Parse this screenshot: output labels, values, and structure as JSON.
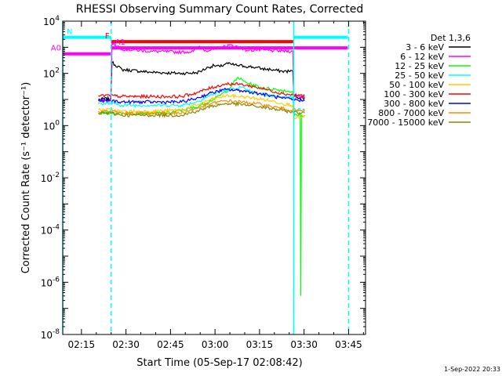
{
  "chart_data": {
    "type": "line",
    "title": "RHESSI Observing Summary Count Rates, Corrected",
    "xlabel": "Start Time (05-Sep-17 02:08:42)",
    "ylabel": "Corrected Count Rate (s⁻¹ detector⁻¹)",
    "x_unit": "minutes after 02:08:42",
    "xlim": [
      0,
      102
    ],
    "ylim": [
      1e-08,
      10000.0
    ],
    "y_scale": "log",
    "x_ticks": [
      {
        "label": "02:15",
        "x": 6.3
      },
      {
        "label": "02:30",
        "x": 21.3
      },
      {
        "label": "02:45",
        "x": 36.3
      },
      {
        "label": "03:00",
        "x": 51.3
      },
      {
        "label": "03:15",
        "x": 66.3
      },
      {
        "label": "03:30",
        "x": 81.3
      },
      {
        "label": "03:45",
        "x": 96.3
      }
    ],
    "y_ticks": [
      {
        "mant": "10",
        "exp": "4",
        "v": 4
      },
      {
        "mant": "10",
        "exp": "2",
        "v": 2
      },
      {
        "mant": "10",
        "exp": "0",
        "v": 0
      },
      {
        "mant": "10",
        "exp": "-2",
        "v": -2
      },
      {
        "mant": "10",
        "exp": "-4",
        "v": -4
      },
      {
        "mant": "10",
        "exp": "-6",
        "v": -6
      },
      {
        "mant": "10",
        "exp": "-8",
        "v": -8
      }
    ],
    "legend_title": "Det 1,3,6",
    "legend_position": "right",
    "series": [
      {
        "name": "3 - 6 keV",
        "color": "#000000",
        "x": [
          12,
          16.2,
          16.6,
          20,
          30,
          40,
          45,
          47,
          49,
          51,
          53,
          55,
          57,
          59,
          61,
          63,
          65,
          67,
          70,
          74,
          77.5,
          77.8,
          79,
          81.5
        ],
        "y": [
          10,
          11,
          260,
          140,
          110,
          100,
          105,
          130,
          170,
          200,
          180,
          240,
          220,
          200,
          190,
          180,
          170,
          150,
          140,
          120,
          120,
          16,
          12,
          12
        ]
      },
      {
        "name": "6 - 12 keV",
        "color": "#ff00ff",
        "x": [
          12,
          16.2,
          16.6,
          20,
          30,
          40,
          44,
          46,
          48,
          52,
          56,
          60,
          62,
          65,
          70,
          74,
          77.5,
          77.8,
          81.5
        ],
        "y": [
          9,
          9,
          1500,
          850,
          700,
          650,
          700,
          1100,
          750,
          850,
          1200,
          1000,
          750,
          800,
          750,
          720,
          700,
          14,
          12
        ]
      },
      {
        "name": "12 - 25 keV",
        "color": "#00ff00",
        "x": [
          12,
          16.2,
          18,
          25,
          35,
          45,
          52,
          56,
          59,
          61,
          63,
          67,
          72,
          77.5,
          78,
          80,
          80.2,
          80.4,
          81.5
        ],
        "y": [
          3,
          3,
          3,
          3,
          3,
          5,
          12,
          25,
          70,
          50,
          40,
          28,
          24,
          20,
          2.5,
          2.5,
          3e-07,
          2.5,
          2.5
        ]
      },
      {
        "name": "25 - 50 keV",
        "color": "#00ffff",
        "x": [
          12,
          16.2,
          20,
          30,
          40,
          45,
          50,
          54,
          58,
          60,
          62,
          66,
          70,
          74,
          77.5,
          77.8,
          81.5
        ],
        "y": [
          7,
          7,
          6,
          6,
          6,
          8,
          15,
          22,
          25,
          30,
          22,
          16,
          14,
          13,
          12,
          4,
          4
        ]
      },
      {
        "name": "50 - 100 keV",
        "color": "#ffcc00",
        "x": [
          12,
          16.2,
          20,
          30,
          40,
          45,
          50,
          55,
          60,
          65,
          70,
          74,
          77.5,
          77.8,
          81.5
        ],
        "y": [
          4,
          4,
          3.5,
          3.5,
          4,
          6,
          10,
          14,
          13,
          11,
          9,
          7,
          6,
          2,
          2
        ]
      },
      {
        "name": "100 - 300 keV",
        "color": "#ff0000",
        "x": [
          12,
          16.2,
          20,
          30,
          40,
          45,
          50,
          55,
          60,
          65,
          70,
          74,
          77.5,
          81.5
        ],
        "y": [
          14,
          14,
          13,
          13,
          13,
          18,
          28,
          40,
          38,
          30,
          22,
          17,
          15,
          14
        ]
      },
      {
        "name": "300 - 800 keV",
        "color": "#0000ff",
        "x": [
          12,
          16.2,
          20,
          30,
          40,
          45,
          50,
          55,
          60,
          65,
          70,
          74,
          77.5,
          81.5
        ],
        "y": [
          9,
          9,
          8,
          8,
          8,
          11,
          18,
          24,
          22,
          18,
          14,
          11,
          10,
          9
        ]
      },
      {
        "name": "800 - 7000 keV",
        "color": "#ff8800",
        "x": [
          12,
          16.2,
          20,
          30,
          40,
          45,
          50,
          55,
          60,
          65,
          70,
          74,
          77.5,
          81.5
        ],
        "y": [
          3.5,
          3.5,
          3,
          3,
          3,
          4.5,
          7,
          9,
          8,
          7,
          5.5,
          4.5,
          4,
          3.5
        ]
      },
      {
        "name": "7000 - 15000 keV",
        "color": "#888800",
        "x": [
          12,
          16.2,
          20,
          30,
          40,
          45,
          50,
          55,
          60,
          65,
          70,
          74,
          77.5,
          81.5
        ],
        "y": [
          3,
          3,
          2.5,
          2.5,
          2.5,
          3.5,
          5.5,
          7,
          6.5,
          5.5,
          4.5,
          3.8,
          3.3,
          3
        ]
      }
    ],
    "state_bars": [
      {
        "label": "N",
        "color": "#00ffff",
        "segments": [
          [
            0,
            16.3
          ],
          [
            77.8,
            96
          ]
        ],
        "y": 2400
      },
      {
        "label": "F",
        "color": "#ff0000",
        "segments": [
          [
            16.3,
            77.8
          ]
        ],
        "y": 1650
      },
      {
        "label": "A0",
        "color": "#ff00ff",
        "segments": [
          [
            0,
            16.3
          ]
        ],
        "y": 560
      },
      {
        "label": "A1",
        "color": "#ff00ff",
        "segments": [
          [
            16.3,
            96
          ]
        ],
        "y": 950
      }
    ],
    "vlines": [
      {
        "x": 0,
        "color": "#00ffff",
        "style": "solid"
      },
      {
        "x": 16.3,
        "color": "#00ffff",
        "style": "dashed"
      },
      {
        "x": 77.8,
        "color": "#00ffff",
        "style": "solid"
      },
      {
        "x": 96.3,
        "color": "#00ffff",
        "style": "dashed"
      }
    ]
  },
  "footer_timestamp": " 1-Sep-2022 20:33"
}
